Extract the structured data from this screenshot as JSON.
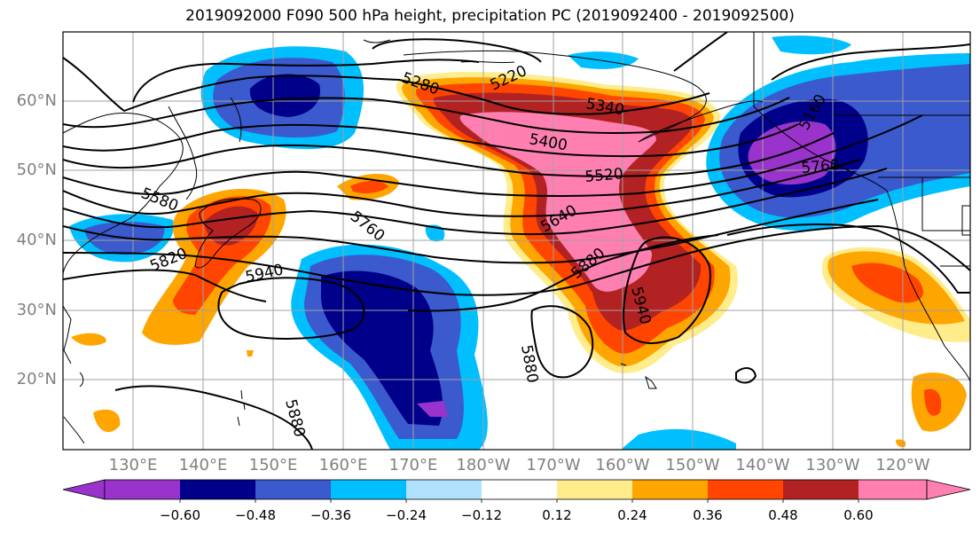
{
  "title": "2019092000 F090 500 hPa height, precipitation PC (2019092400 - 2019092500)",
  "lat_labels": [
    "60°N",
    "50°N",
    "40°N",
    "30°N",
    "20°N"
  ],
  "lon_labels": [
    "130°E",
    "140°E",
    "150°E",
    "160°E",
    "170°E",
    "180°W",
    "170°W",
    "160°W",
    "150°W",
    "140°W",
    "130°W",
    "120°W"
  ],
  "contour_labels": [
    "5280",
    "5220",
    "5340",
    "5400",
    "5520",
    "5640",
    "5880",
    "5940",
    "5760",
    "5580",
    "5820",
    "5940",
    "5880",
    "5880",
    "5760",
    "5160"
  ],
  "colorbar": {
    "ticks": [
      "−0.60",
      "−0.48",
      "−0.36",
      "−0.24",
      "−0.12",
      "0.12",
      "0.24",
      "0.36",
      "0.48",
      "0.60"
    ],
    "colors": [
      "#9933cc",
      "#00008b",
      "#3a5acd",
      "#00bfff",
      "#b0e2ff",
      "#ffffff",
      "#ffec8b",
      "#ffa500",
      "#ff4500",
      "#b22222",
      "#ff7fb0"
    ]
  },
  "fill_colors": {
    "purple": "#9933cc",
    "navy": "#00008b",
    "blue": "#3a5acd",
    "cyan": "#00bfff",
    "lightblue": "#b0e2ff",
    "yellow": "#ffec8b",
    "orange": "#ffa500",
    "redorange": "#ff4500",
    "darkred": "#b22222",
    "pink": "#ff7fb0"
  }
}
